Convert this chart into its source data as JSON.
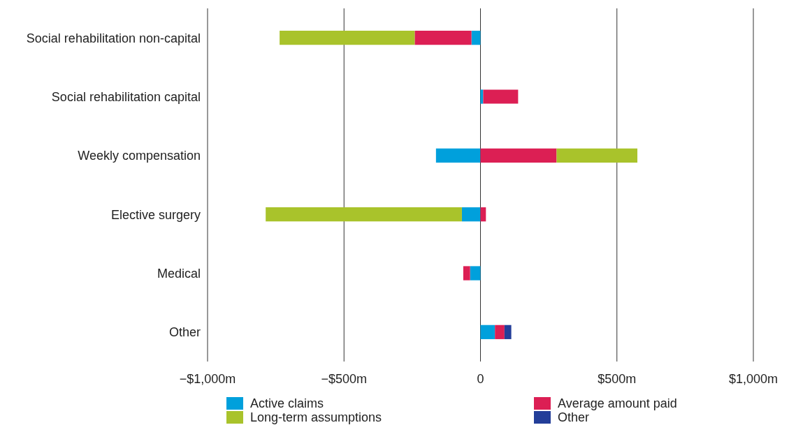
{
  "chart_data": {
    "type": "bar",
    "orientation": "horizontal",
    "stacked": true,
    "categories": [
      "Social rehabilitation non-capital",
      "Social rehabilitation capital",
      "Weekly compensation",
      "Elective surgery",
      "Medical",
      "Other"
    ],
    "series": [
      {
        "name": "Active claims",
        "color": "#00a0dc",
        "values": [
          -33,
          10,
          -163,
          -68,
          -38,
          53
        ]
      },
      {
        "name": "Average amount paid",
        "color": "#dc1f54",
        "values": [
          -208,
          128,
          279,
          20,
          -25,
          35
        ]
      },
      {
        "name": "Long-term assumptions",
        "color": "#a9c32b",
        "values": [
          -495,
          null,
          296,
          -719,
          null,
          null
        ]
      },
      {
        "name": "Other",
        "color": "#233e99",
        "values": [
          null,
          null,
          null,
          null,
          null,
          25
        ]
      }
    ],
    "xlim": [
      -1000,
      1000
    ],
    "xticks": [
      {
        "value": -1000,
        "label": "−$1,000m"
      },
      {
        "value": -500,
        "label": "−$500m"
      },
      0,
      {
        "value": 500,
        "label": "$500m"
      },
      {
        "value": 1000,
        "label": "$1,000m"
      }
    ],
    "grid": "x",
    "legend": "bottom"
  }
}
